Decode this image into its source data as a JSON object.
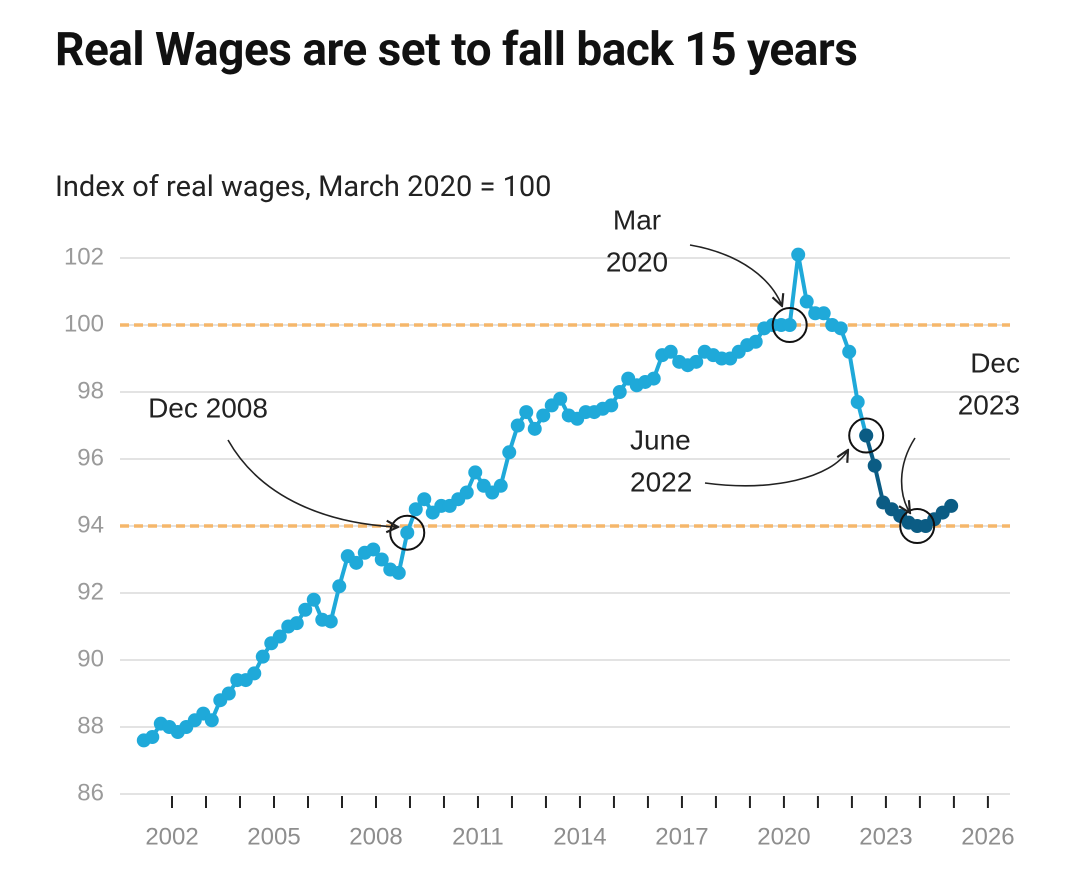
{
  "chart_data": {
    "type": "line",
    "title": "Real Wages are set to fall back 15 years",
    "subtitle": "Index of real wages, March 2020 = 100",
    "xlim": [
      2000.47,
      2026.65
    ],
    "ylim": [
      86,
      102
    ],
    "yticks": [
      86,
      88,
      90,
      92,
      94,
      96,
      98,
      100,
      102
    ],
    "xticks": [
      2002,
      2005,
      2008,
      2011,
      2014,
      2017,
      2020,
      2023,
      2026
    ],
    "x_minor_ticks": [
      2002,
      2003,
      2004,
      2005,
      2006,
      2007,
      2008,
      2009,
      2010,
      2011,
      2012,
      2013,
      2014,
      2015,
      2016,
      2017,
      2018,
      2019,
      2020,
      2021,
      2022,
      2023,
      2024,
      2025,
      2026
    ],
    "grid": true,
    "reference_lines": {
      "values": [
        100,
        94
      ],
      "color": "#f5b76b"
    },
    "series": [
      {
        "color": "#1fa9d9",
        "x": [
          2001.17,
          2001.42,
          2001.67,
          2001.92,
          2002.17,
          2002.42,
          2002.67,
          2002.92,
          2003.17,
          2003.42,
          2003.67,
          2003.92,
          2004.17,
          2004.42,
          2004.67,
          2004.92,
          2005.17,
          2005.42,
          2005.67,
          2005.92,
          2006.17,
          2006.42,
          2006.67,
          2006.92,
          2007.17,
          2007.42,
          2007.67,
          2007.92,
          2008.17,
          2008.42,
          2008.67,
          2008.92,
          2009.17,
          2009.42,
          2009.67,
          2009.92,
          2010.17,
          2010.42,
          2010.67,
          2010.92,
          2011.17,
          2011.42,
          2011.67,
          2011.92,
          2012.17,
          2012.42,
          2012.67,
          2012.92,
          2013.17,
          2013.42,
          2013.67,
          2013.92,
          2014.17,
          2014.42,
          2014.67,
          2014.92,
          2015.17,
          2015.42,
          2015.67,
          2015.92,
          2016.17,
          2016.42,
          2016.67,
          2016.92,
          2017.17,
          2017.42,
          2017.67,
          2017.92,
          2018.17,
          2018.42,
          2018.67,
          2018.92,
          2019.17,
          2019.42,
          2019.67,
          2019.92,
          2020.17,
          2020.42,
          2020.67,
          2020.92,
          2021.17,
          2021.42,
          2021.67,
          2021.92,
          2022.17,
          2022.42
        ],
        "values": [
          87.6,
          87.7,
          88.1,
          88.0,
          87.85,
          88.0,
          88.2,
          88.4,
          88.2,
          88.8,
          89.0,
          89.4,
          89.4,
          89.6,
          90.1,
          90.5,
          90.7,
          91.0,
          91.1,
          91.5,
          91.8,
          91.2,
          91.15,
          92.2,
          93.1,
          92.9,
          93.2,
          93.3,
          93.0,
          92.7,
          92.6,
          93.8,
          94.5,
          94.8,
          94.4,
          94.6,
          94.6,
          94.8,
          95.0,
          95.6,
          95.2,
          95.0,
          95.2,
          96.2,
          97.0,
          97.4,
          96.9,
          97.3,
          97.6,
          97.8,
          97.3,
          97.2,
          97.4,
          97.4,
          97.5,
          97.6,
          98.0,
          98.4,
          98.2,
          98.3,
          98.4,
          99.1,
          99.2,
          98.9,
          98.8,
          98.9,
          99.2,
          99.1,
          99.0,
          99.0,
          99.2,
          99.4,
          99.5,
          99.9,
          100.0,
          100.0,
          100.0,
          102.1,
          100.7,
          100.35,
          100.35,
          100.0,
          99.9,
          99.2,
          97.7,
          96.7
        ]
      },
      {
        "color": "#0b5c84",
        "x": [
          2022.42,
          2022.67,
          2022.92,
          2023.17,
          2023.42,
          2023.67,
          2023.92,
          2024.17,
          2024.42,
          2024.67,
          2024.92
        ],
        "values": [
          96.7,
          95.8,
          94.7,
          94.5,
          94.3,
          94.1,
          94.0,
          94.0,
          94.2,
          94.4,
          94.6
        ]
      }
    ],
    "annotations": [
      {
        "text": [
          "Dec 2008"
        ],
        "x": 2008.92,
        "y": 93.8
      },
      {
        "text": [
          "Mar",
          "2020"
        ],
        "x": 2020.17,
        "y": 100.0
      },
      {
        "text": [
          "June",
          "2022"
        ],
        "x": 2022.42,
        "y": 96.7
      },
      {
        "text": [
          "Dec",
          "2023"
        ],
        "x": 2023.92,
        "y": 94.0
      }
    ]
  }
}
